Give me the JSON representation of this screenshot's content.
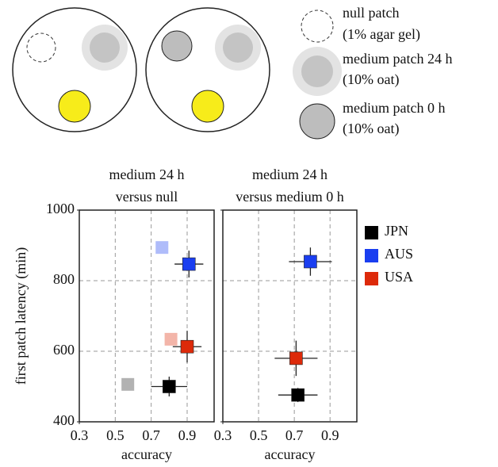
{
  "diagram": {
    "items": [
      {
        "label": "null patch",
        "sublabel": "(1% agar gel)"
      },
      {
        "label": "medium patch 24 h",
        "sublabel": "(10% oat)"
      },
      {
        "label": "medium patch 0 h",
        "sublabel": "(10% oat)"
      }
    ]
  },
  "chart_data": [
    {
      "type": "scatter",
      "title": [
        "medium 24 h",
        "versus null"
      ],
      "xlabel": "accuracy",
      "ylabel": "first patch latency (min)",
      "xlim": [
        0.3,
        1.05
      ],
      "ylim": [
        400,
        1000
      ],
      "xticks": [
        0.3,
        0.5,
        0.7,
        0.9
      ],
      "yticks": [
        400,
        600,
        800,
        1000
      ],
      "grid": true,
      "show_yticklabels": true,
      "legend": "outside-right",
      "series": [
        {
          "name": "JPN",
          "color": "#000000",
          "x": [
            0.8,
            0.57
          ],
          "values": [
            500,
            506
          ],
          "xerr": [
            0.1,
            null
          ],
          "yerr": [
            28,
            null
          ],
          "opacity": [
            1,
            0.3
          ]
        },
        {
          "name": "AUS",
          "color": "#1a3ef0",
          "x": [
            0.91,
            0.76
          ],
          "values": [
            847,
            894
          ],
          "xerr": [
            0.08,
            null
          ],
          "yerr": [
            38,
            null
          ],
          "opacity": [
            1,
            0.35
          ]
        },
        {
          "name": "USA",
          "color": "#dd2a0a",
          "x": [
            0.9,
            0.81
          ],
          "values": [
            613,
            634
          ],
          "xerr": [
            0.08,
            null
          ],
          "yerr": [
            45,
            null
          ],
          "opacity": [
            1,
            0.35
          ]
        }
      ]
    },
    {
      "type": "scatter",
      "title": [
        "medium 24 h",
        "versus medium 0 h"
      ],
      "xlabel": "accuracy",
      "xlim": [
        0.3,
        1.05
      ],
      "ylim": [
        400,
        1000
      ],
      "xticks": [
        0.3,
        0.5,
        0.7,
        0.9
      ],
      "yticks": [
        400,
        600,
        800,
        1000
      ],
      "grid": true,
      "show_yticklabels": false,
      "series": [
        {
          "color": "#000000",
          "x": [
            0.72
          ],
          "values": [
            476
          ],
          "xerr": [
            0.11
          ],
          "yerr": [
            20
          ],
          "opacity": [
            1
          ]
        },
        {
          "color": "#1a3ef0",
          "x": [
            0.79
          ],
          "values": [
            854
          ],
          "xerr": [
            0.12
          ],
          "yerr": [
            40
          ],
          "opacity": [
            1
          ]
        },
        {
          "color": "#dd2a0a",
          "x": [
            0.71
          ],
          "values": [
            580
          ],
          "xerr": [
            0.12
          ],
          "yerr": [
            50
          ],
          "opacity": [
            1
          ]
        }
      ]
    }
  ]
}
